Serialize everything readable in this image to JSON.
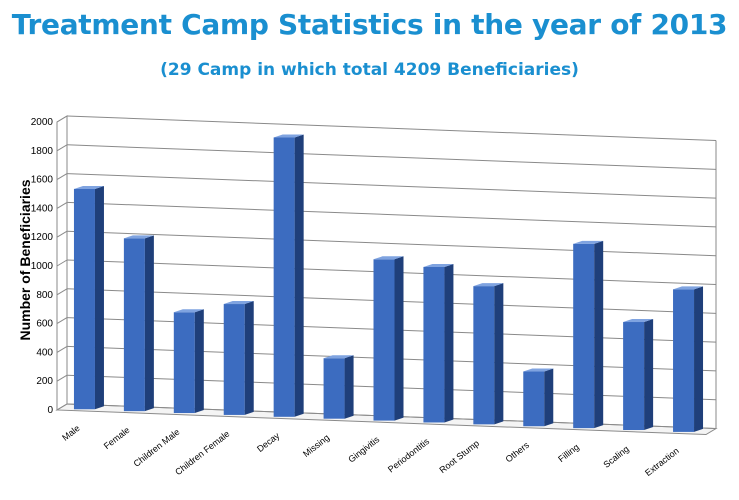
{
  "header": {
    "title": "Treatment Camp Statistics in the year of 2013",
    "subtitle": "(29 Camp in which total 4209 Beneficiaries)"
  },
  "chart_data": {
    "type": "bar",
    "categories": [
      "Male",
      "Female",
      "Children Male",
      "Children Female",
      "Decay",
      "Missing",
      "Gingivitis",
      "Periodontitis",
      "Root Stump",
      "Others",
      "Filling",
      "Scaling",
      "Extraction"
    ],
    "values": [
      1530,
      1200,
      700,
      770,
      1940,
      420,
      1120,
      1080,
      960,
      380,
      1280,
      750,
      990
    ],
    "ylabel": "Number of Beneficiaries",
    "xlabel": "",
    "ylim": [
      0,
      2000
    ],
    "yticks": [
      0,
      200,
      400,
      600,
      800,
      1000,
      1200,
      1400,
      1600,
      1800,
      2000
    ],
    "grid": true,
    "bar_color": "#3c6cc0",
    "bar_side_color": "#1f3f7a",
    "bar_top_color": "#7fa3e0"
  }
}
